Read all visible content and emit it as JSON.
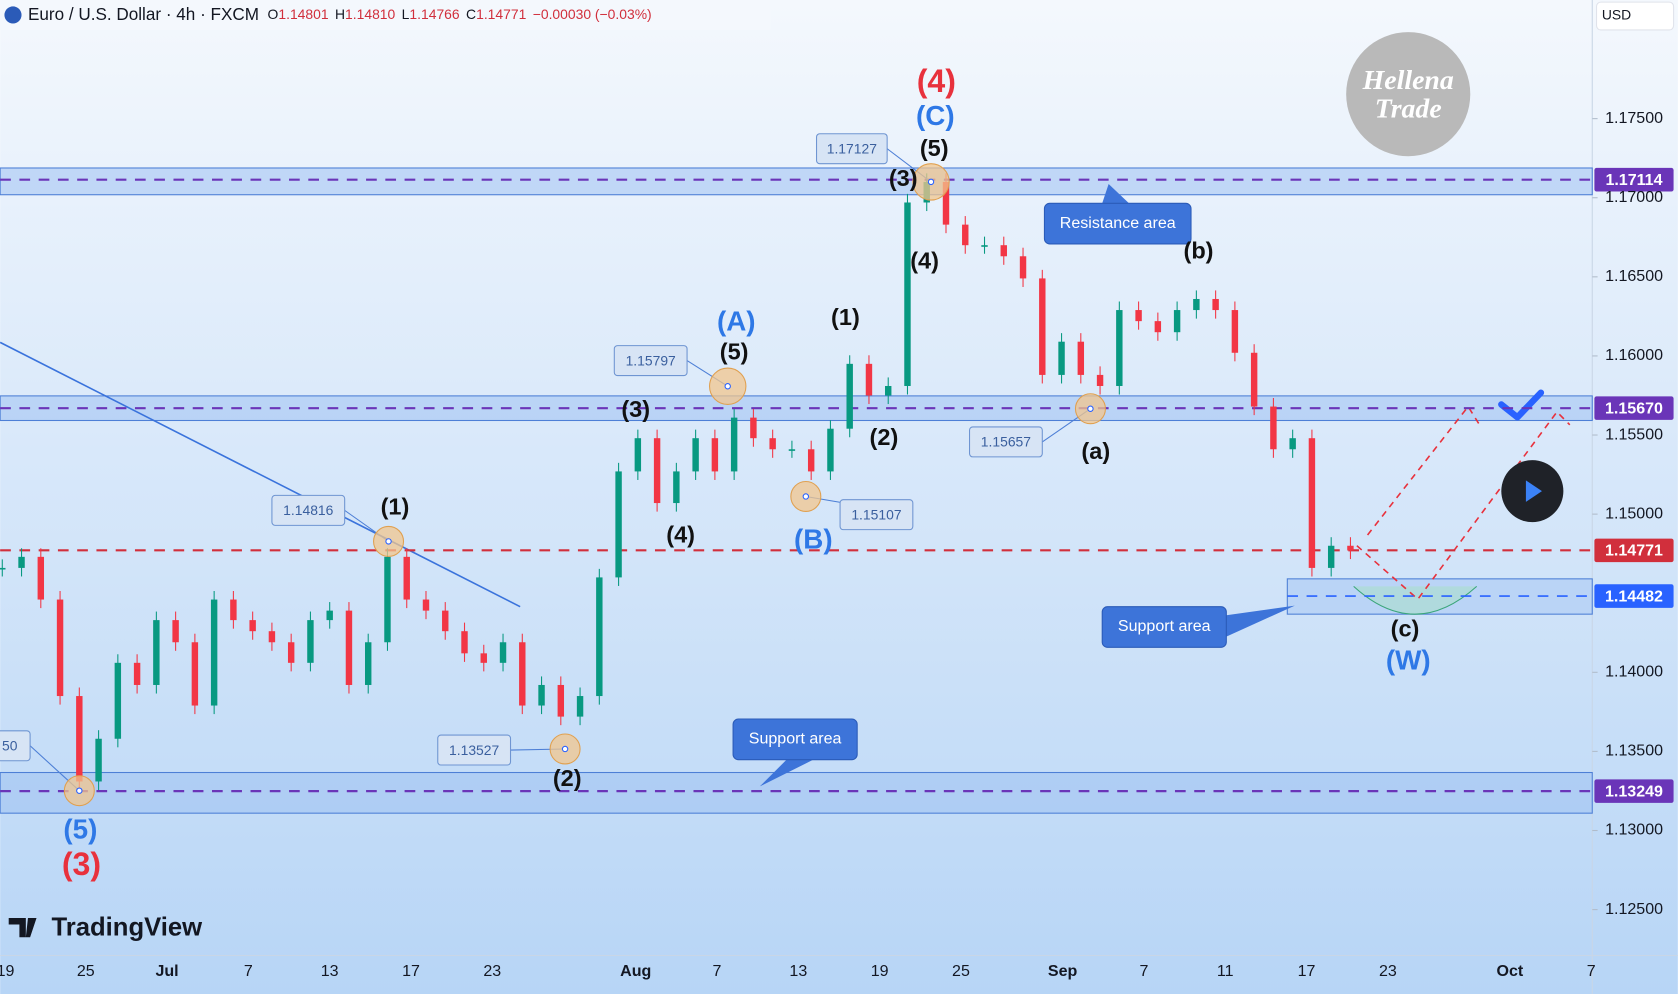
{
  "header": {
    "symbol": "Euro / U.S. Dollar · 4h · FXCM",
    "open_label": "O",
    "open": "1.14801",
    "high_label": "H",
    "high": "1.14810",
    "low_label": "L",
    "low": "1.14766",
    "close_label": "C",
    "close": "1.14771",
    "change": "−0.00030 (−0.03%)"
  },
  "currency": "USD",
  "watermark": [
    "Hellena",
    "Trade"
  ],
  "brand": "TradingView",
  "chart_data": {
    "type": "candlestick",
    "closes": [
      1.1466,
      1.1473,
      1.1446,
      1.1385,
      1.1331,
      1.1358,
      1.1406,
      1.1392,
      1.1433,
      1.1419,
      1.1379,
      1.1446,
      1.1433,
      1.1426,
      1.1419,
      1.1406,
      1.1433,
      1.1439,
      1.1392,
      1.1419,
      1.1473,
      1.1446,
      1.1439,
      1.1426,
      1.1412,
      1.1406,
      1.1419,
      1.1379,
      1.1392,
      1.1372,
      1.1385,
      1.146,
      1.1527,
      1.1548,
      1.1507,
      1.1527,
      1.1548,
      1.1527,
      1.1561,
      1.1548,
      1.1541,
      1.1541,
      1.1527,
      1.1554,
      1.1595,
      1.1575,
      1.1581,
      1.1697,
      1.171,
      1.1683,
      1.167,
      1.167,
      1.1663,
      1.1649,
      1.1588,
      1.1609,
      1.1588,
      1.1581,
      1.1629,
      1.1622,
      1.1615,
      1.1629,
      1.1636,
      1.1629,
      1.1602,
      1.1568,
      1.1541,
      1.1548,
      1.1466,
      1.148,
      1.1477
    ],
    "up_color": "#089981",
    "down_color": "#f23645",
    "ylim": [
      1.1221,
      1.1825
    ],
    "yticks": [
      {
        "value": 1.175,
        "label": "1.17500"
      },
      {
        "value": 1.17,
        "label": "1.17000"
      },
      {
        "value": 1.165,
        "label": "1.16500"
      },
      {
        "value": 1.16,
        "label": "1.16000"
      },
      {
        "value": 1.155,
        "label": "1.15500"
      },
      {
        "value": 1.15,
        "label": "1.15000"
      },
      {
        "value": 1.14,
        "label": "1.14000"
      },
      {
        "value": 1.135,
        "label": "1.13500"
      },
      {
        "value": 1.13,
        "label": "1.13000"
      },
      {
        "value": 1.125,
        "label": "1.12500"
      }
    ],
    "dates": [
      "19",
      "25",
      "Jul",
      "7",
      "13",
      "17",
      "23",
      "Aug",
      "7",
      "13",
      "19",
      "25",
      "Sep",
      "7",
      "11",
      "17",
      "23",
      "Oct",
      "7"
    ],
    "price_tags": [
      {
        "value": 1.17114,
        "color": "#6a35b8"
      },
      {
        "value": 1.1567,
        "label": "1.15670",
        "color": "#6a35b8"
      },
      {
        "value": 1.14771,
        "color": "#d12f3c"
      },
      {
        "value": 1.14482,
        "color": "#2962ff"
      },
      {
        "value": 1.13249,
        "color": "#6a35b8"
      }
    ],
    "callouts": [
      "1.17127",
      "1.15797",
      "1.14816",
      "1.15107",
      "1.15657",
      "1.13527",
      "50"
    ],
    "wave_labels": [
      {
        "text": "(4)",
        "color": "#e8313c"
      },
      {
        "text": "(C)",
        "color": "#2e78e6"
      },
      {
        "text": "(5)",
        "color": "#111111"
      },
      {
        "text": "(3)",
        "color": "#111111"
      },
      {
        "text": "(4)",
        "color": "#111111"
      },
      {
        "text": "(b)",
        "color": "#111111"
      },
      {
        "text": "(1)",
        "color": "#111111"
      },
      {
        "text": "(2)",
        "color": "#111111"
      },
      {
        "text": "(A)",
        "color": "#2e78e6"
      },
      {
        "text": "(5)",
        "color": "#111111"
      },
      {
        "text": "(3)",
        "color": "#111111"
      },
      {
        "text": "(4)",
        "color": "#111111"
      },
      {
        "text": "(B)",
        "color": "#2e78e6"
      },
      {
        "text": "(a)",
        "color": "#111111"
      },
      {
        "text": "(1)",
        "color": "#111111"
      },
      {
        "text": "(2)",
        "color": "#111111"
      },
      {
        "text": "(5)",
        "color": "#2e78e6"
      },
      {
        "text": "(3)",
        "color": "#e8313c"
      },
      {
        "text": "(c)",
        "color": "#111111"
      },
      {
        "text": "(W)",
        "color": "#2e78e6"
      }
    ],
    "area_notes": [
      "Resistance area",
      "Support area",
      "Support area"
    ]
  }
}
